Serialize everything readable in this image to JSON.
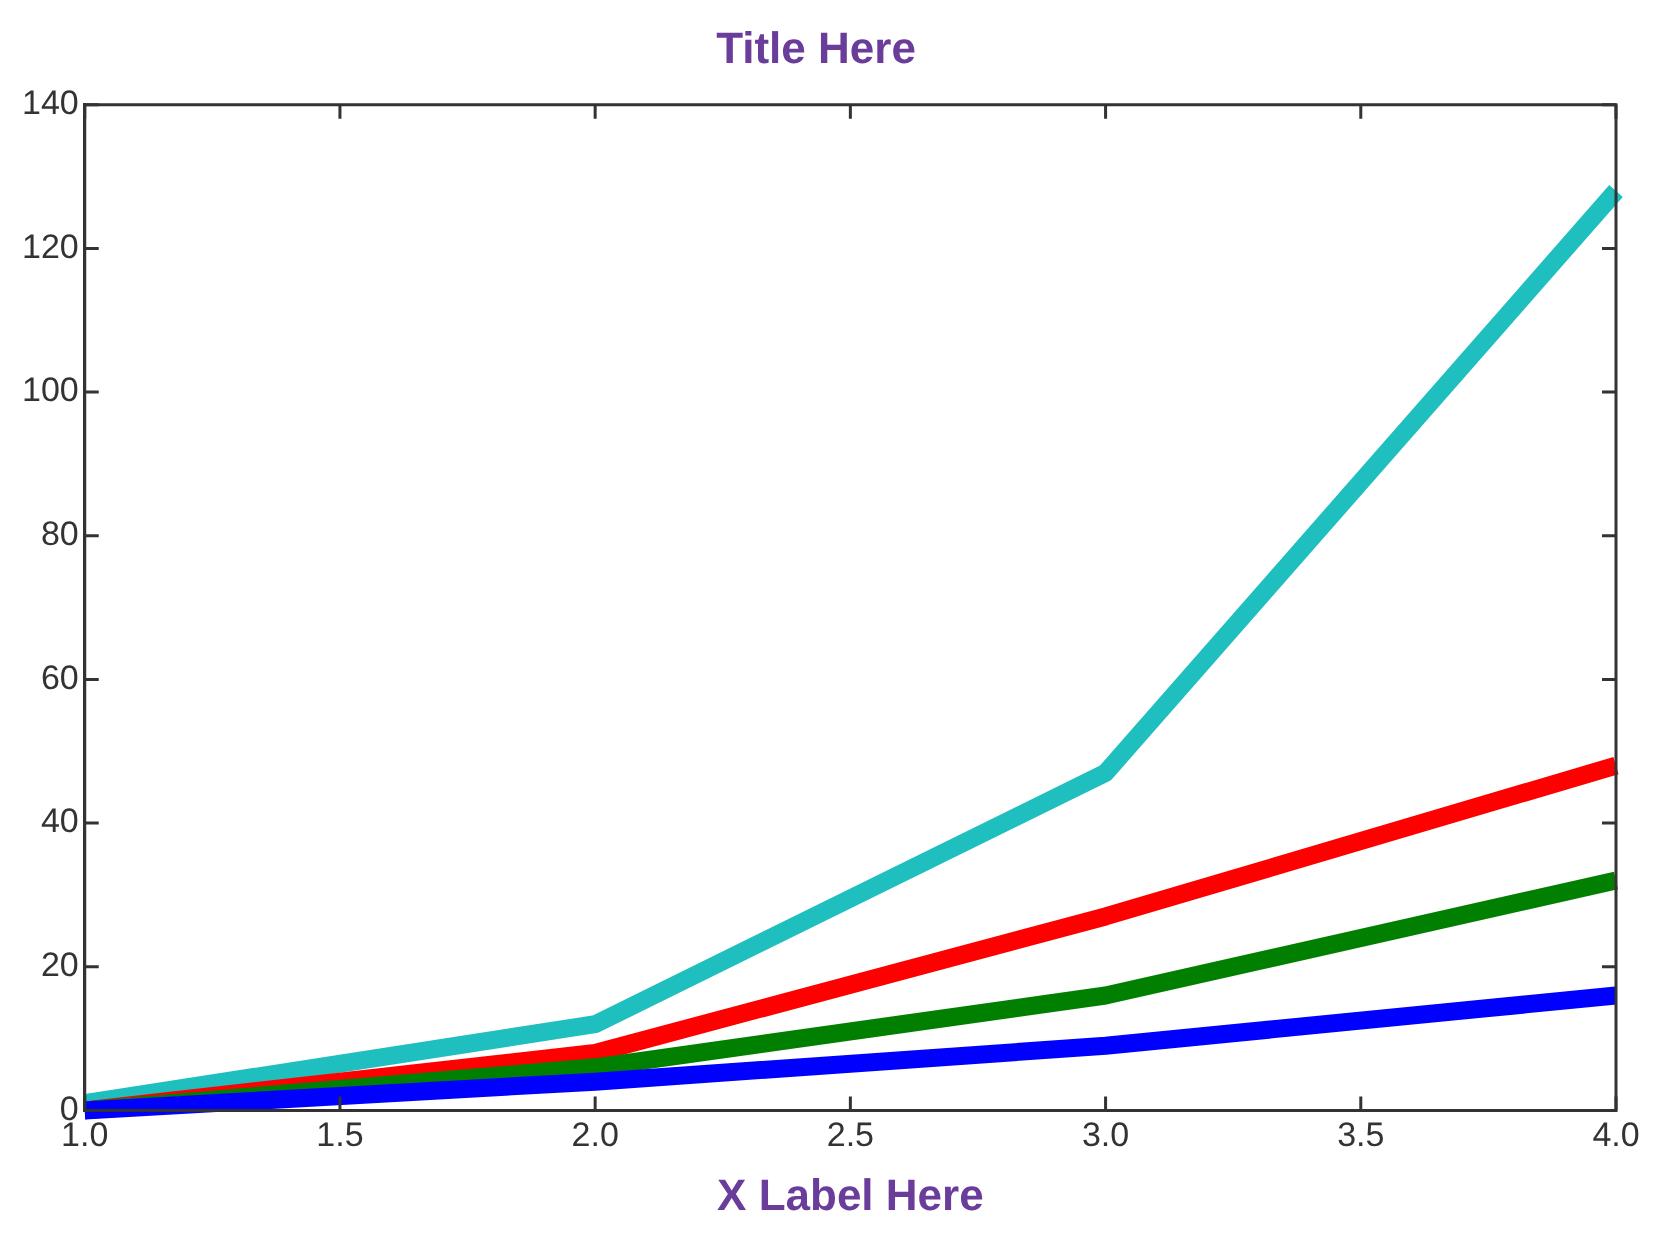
{
  "chart_data": {
    "type": "line",
    "title": "Title Here",
    "xlabel": "X Label Here",
    "x": [
      1,
      2,
      3,
      4
    ],
    "series": [
      {
        "color": "#0000ff",
        "values": [
          0,
          4,
          9,
          16
        ]
      },
      {
        "color": "#007f00",
        "values": [
          0,
          6,
          16,
          32
        ]
      },
      {
        "color": "#ff0000",
        "values": [
          0,
          8,
          27,
          48
        ]
      },
      {
        "color": "#1fbfbf",
        "values": [
          1,
          12,
          47,
          128
        ]
      }
    ],
    "xlim": [
      1,
      4
    ],
    "xticks": [
      {
        "value": 1,
        "label": "1.0"
      },
      {
        "value": 1.5,
        "label": "1.5"
      },
      {
        "value": 2,
        "label": "2.0"
      },
      {
        "value": 2.5,
        "label": "2.5"
      },
      {
        "value": 3,
        "label": "3.0"
      },
      {
        "value": 3.5,
        "label": "3.5"
      },
      {
        "value": 4,
        "label": "4.0"
      }
    ],
    "ylim": [
      0,
      140
    ],
    "yticks": [
      0,
      20,
      40,
      60,
      80,
      100,
      120,
      140
    ],
    "grid": false,
    "legend": false,
    "marker": "none",
    "line_style": "solid"
  }
}
